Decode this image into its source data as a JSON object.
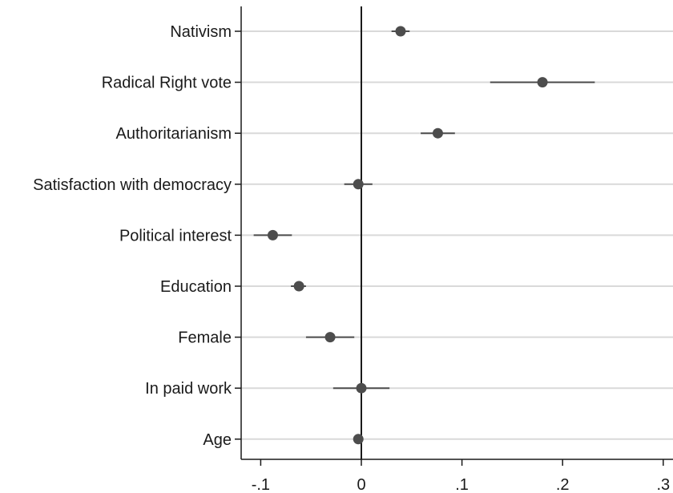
{
  "chart_data": {
    "type": "scatter",
    "subtype": "coefficient-plot",
    "title": "",
    "xlabel": "",
    "ylabel": "",
    "xlim": [
      -0.12,
      0.31
    ],
    "x_ticks": [
      {
        "value": -0.1,
        "label": "-.1"
      },
      {
        "value": 0,
        "label": "0"
      },
      {
        "value": 0.1,
        "label": ".1"
      },
      {
        "value": 0.2,
        "label": ".2"
      },
      {
        "value": 0.3,
        "label": ".3"
      }
    ],
    "reference_line_x": 0,
    "grid": "horizontal",
    "colors": {
      "point": "#4d4d4d",
      "grid": "#d9d9d9",
      "axis": "#1a1a1a"
    },
    "categories": [
      "Nativism",
      "Radical Right vote",
      "Authoritarianism",
      "Satisfaction with democracy",
      "Political interest",
      "Education",
      "Female",
      "In paid work",
      "Age"
    ],
    "estimates": [
      0.039,
      0.18,
      0.076,
      -0.003,
      -0.088,
      -0.062,
      -0.031,
      0.0,
      -0.003
    ],
    "ci_low": [
      0.03,
      0.128,
      0.059,
      -0.017,
      -0.107,
      -0.07,
      -0.055,
      -0.028,
      -0.005
    ],
    "ci_high": [
      0.048,
      0.232,
      0.093,
      0.011,
      -0.069,
      -0.055,
      -0.007,
      0.028,
      -0.001
    ]
  }
}
